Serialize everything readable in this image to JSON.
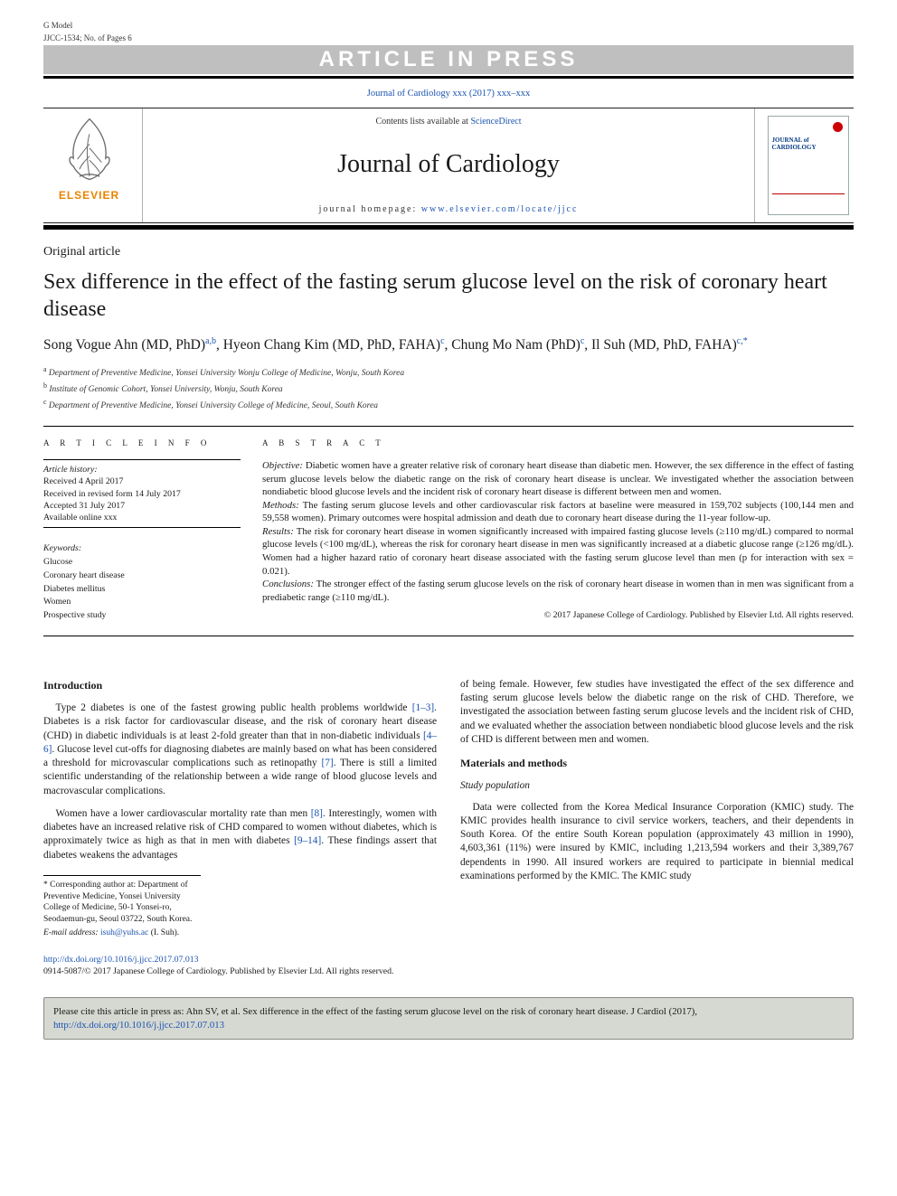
{
  "gmodel_line1": "G Model",
  "gmodel_line2": "JJCC-1534; No. of Pages 6",
  "banner": "ARTICLE IN PRESS",
  "running_head": "Journal of Cardiology xxx (2017) xxx–xxx",
  "masthead": {
    "contents_prefix": "Contents lists available at ",
    "contents_link": "ScienceDirect",
    "journal_title": "Journal of Cardiology",
    "homepage_prefix": "journal homepage: ",
    "homepage_link": "www.elsevier.com/locate/jjcc",
    "publisher_brand": "ELSEVIER",
    "cover_journal": "JOURNAL of\nCARDIOLOGY"
  },
  "article_type": "Original article",
  "title": "Sex difference in the effect of the fasting serum glucose level on the risk of coronary heart disease",
  "authors_html": "Song Vogue Ahn (MD, PhD)<a class=\"aff\">a,b</a>, Hyeon Chang Kim (MD, PhD, FAHA)<a class=\"aff\">c</a>, Chung Mo Nam (PhD)<a class=\"aff\">c</a>, Il Suh (MD, PhD, FAHA)<a class=\"aff\">c,*</a>",
  "affiliations": {
    "a": "Department of Preventive Medicine, Yonsei University Wonju College of Medicine, Wonju, South Korea",
    "b": "Institute of Genomic Cohort, Yonsei University, Wonju, South Korea",
    "c": "Department of Preventive Medicine, Yonsei University College of Medicine, Seoul, South Korea"
  },
  "info_heading": "A R T I C L E   I N F O",
  "abs_heading": "A B S T R A C T",
  "history": {
    "label": "Article history:",
    "received": "Received 4 April 2017",
    "revised": "Received in revised form 14 July 2017",
    "accepted": "Accepted 31 July 2017",
    "online": "Available online xxx"
  },
  "keywords": {
    "label": "Keywords:",
    "items": [
      "Glucose",
      "Coronary heart disease",
      "Diabetes mellitus",
      "Women",
      "Prospective study"
    ]
  },
  "abstract": {
    "objective_label": "Objective:",
    "objective": " Diabetic women have a greater relative risk of coronary heart disease than diabetic men. However, the sex difference in the effect of fasting serum glucose levels below the diabetic range on the risk of coronary heart disease is unclear. We investigated whether the association between nondiabetic blood glucose levels and the incident risk of coronary heart disease is different between men and women.",
    "methods_label": "Methods:",
    "methods": " The fasting serum glucose levels and other cardiovascular risk factors at baseline were measured in 159,702 subjects (100,144 men and 59,558 women). Primary outcomes were hospital admission and death due to coronary heart disease during the 11-year follow-up.",
    "results_label": "Results:",
    "results": " The risk for coronary heart disease in women significantly increased with impaired fasting glucose levels (≥110 mg/dL) compared to normal glucose levels (<100 mg/dL), whereas the risk for coronary heart disease in men was significantly increased at a diabetic glucose range (≥126 mg/dL). Women had a higher hazard ratio of coronary heart disease associated with the fasting serum glucose level than men (p for interaction with sex = 0.021).",
    "conclusions_label": "Conclusions:",
    "conclusions": " The stronger effect of the fasting serum glucose levels on the risk of coronary heart disease in women than in men was significant from a prediabetic range (≥110 mg/dL).",
    "copyright": "© 2017 Japanese College of Cardiology. Published by Elsevier Ltd. All rights reserved."
  },
  "body": {
    "introduction_heading": "Introduction",
    "intro_p1_a": "Type 2 diabetes is one of the fastest growing public health problems worldwide ",
    "intro_p1_ref1": "[1–3]",
    "intro_p1_b": ". Diabetes is a risk factor for cardiovascular disease, and the risk of coronary heart disease (CHD) in diabetic individuals is at least 2-fold greater than that in non-diabetic individuals ",
    "intro_p1_ref2": "[4–6]",
    "intro_p1_c": ". Glucose level cut-offs for diagnosing diabetes are mainly based on what has been considered a threshold for microvascular complications such as retinopathy ",
    "intro_p1_ref3": "[7]",
    "intro_p1_d": ". There is still a limited scientific understanding of the relationship between a wide range of blood glucose levels and macrovascular complications.",
    "intro_p2_a": "Women have a lower cardiovascular mortality rate than men ",
    "intro_p2_ref1": "[8]",
    "intro_p2_b": ". Interestingly, women with diabetes have an increased relative risk of CHD compared to women without diabetes, which is approximately twice as high as that in men with diabetes ",
    "intro_p2_ref2": "[9–14]",
    "intro_p2_c": ". These findings assert that diabetes weakens the advantages",
    "col2_p1": "of being female. However, few studies have investigated the effect of the sex difference and fasting serum glucose levels below the diabetic range on the risk of CHD. Therefore, we investigated the association between fasting serum glucose levels and the incident risk of CHD, and we evaluated whether the association between nondiabetic blood glucose levels and the risk of CHD is different between men and women.",
    "mm_heading": "Materials and methods",
    "study_pop_heading": "Study population",
    "study_pop_p": "Data were collected from the Korea Medical Insurance Corporation (KMIC) study. The KMIC provides health insurance to civil service workers, teachers, and their dependents in South Korea. Of the entire South Korean population (approximately 43 million in 1990), 4,603,361 (11%) were insured by KMIC, including 1,213,594 workers and their 3,389,767 dependents in 1990. All insured workers are required to participate in biennial medical examinations performed by the KMIC. The KMIC study"
  },
  "footnote": {
    "corr": "* Corresponding author at: Department of Preventive Medicine, Yonsei University College of Medicine, 50-1 Yonsei-ro, Seodaemun-gu, Seoul 03722, South Korea.",
    "email_label": "E-mail address: ",
    "email": "isuh@yuhs.ac",
    "email_tail": " (I. Suh)."
  },
  "doi": {
    "url": "http://dx.doi.org/10.1016/j.jjcc.2017.07.013",
    "issn_line": "0914-5087/© 2017 Japanese College of Cardiology. Published by Elsevier Ltd. All rights reserved."
  },
  "cite_box": {
    "text_a": "Please cite this article in press as: Ahn SV, et al. Sex difference in the effect of the fasting serum glucose level on the risk of coronary heart disease. J Cardiol (2017), ",
    "link": "http://dx.doi.org/10.1016/j.jjcc.2017.07.013"
  }
}
